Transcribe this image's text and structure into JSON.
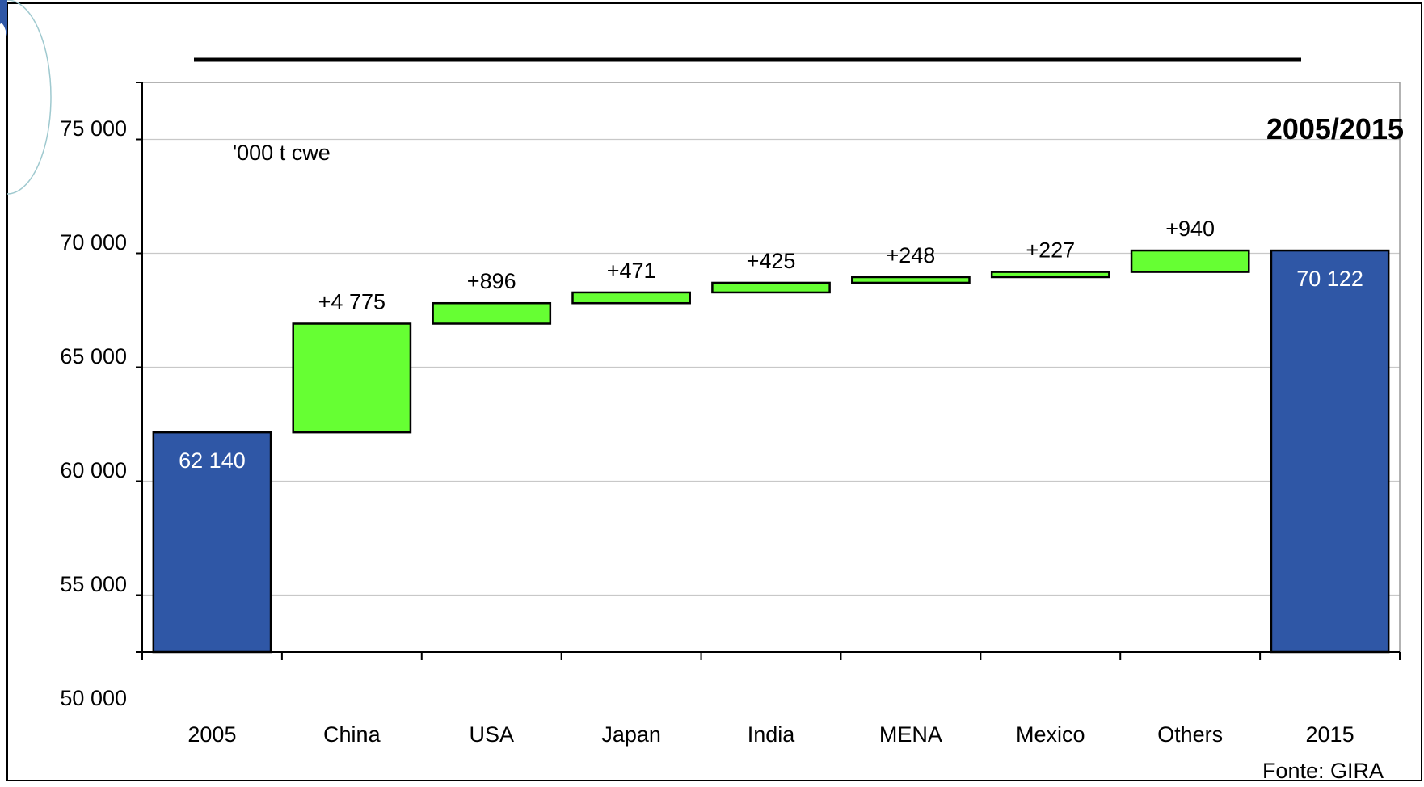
{
  "chart_data": {
    "type": "bar",
    "subtype": "waterfall",
    "categories": [
      "2005",
      "China",
      "USA",
      "Japan",
      "India",
      "MENA",
      "Mexico",
      "Others",
      "2015"
    ],
    "steps": [
      {
        "category": "2005",
        "kind": "total",
        "base": 0,
        "value": 62140,
        "label": "62 140"
      },
      {
        "category": "China",
        "kind": "delta",
        "base": 62140,
        "value": 4775,
        "label": "+4 775"
      },
      {
        "category": "USA",
        "kind": "delta",
        "base": 66915,
        "value": 896,
        "label": "+896"
      },
      {
        "category": "Japan",
        "kind": "delta",
        "base": 67811,
        "value": 471,
        "label": "+471"
      },
      {
        "category": "India",
        "kind": "delta",
        "base": 68282,
        "value": 425,
        "label": "+425"
      },
      {
        "category": "MENA",
        "kind": "delta",
        "base": 68707,
        "value": 248,
        "label": "+248"
      },
      {
        "category": "Mexico",
        "kind": "delta",
        "base": 68955,
        "value": 227,
        "label": "+227"
      },
      {
        "category": "Others",
        "kind": "delta",
        "base": 69182,
        "value": 940,
        "label": "+940"
      },
      {
        "category": "2015",
        "kind": "total",
        "base": 0,
        "value": 70122,
        "label": "70 122"
      }
    ],
    "y_ticks": [
      {
        "value": 50000,
        "label": "50 000"
      },
      {
        "value": 55000,
        "label": "55 000"
      },
      {
        "value": 60000,
        "label": "60 000"
      },
      {
        "value": 65000,
        "label": "65 000"
      },
      {
        "value": 70000,
        "label": "70 000"
      },
      {
        "value": 75000,
        "label": "75 000"
      }
    ],
    "ylim": [
      52500,
      77500
    ],
    "grid": true,
    "unit_label": "'000 t cwe",
    "period_label": "2005/2015",
    "source": "Fonte: GIRA",
    "colors": {
      "total": "#2f57a6",
      "delta": "#66ff33",
      "outline": "#000000",
      "grid": "#c8c8c8",
      "total_label": "#ffffff"
    }
  }
}
